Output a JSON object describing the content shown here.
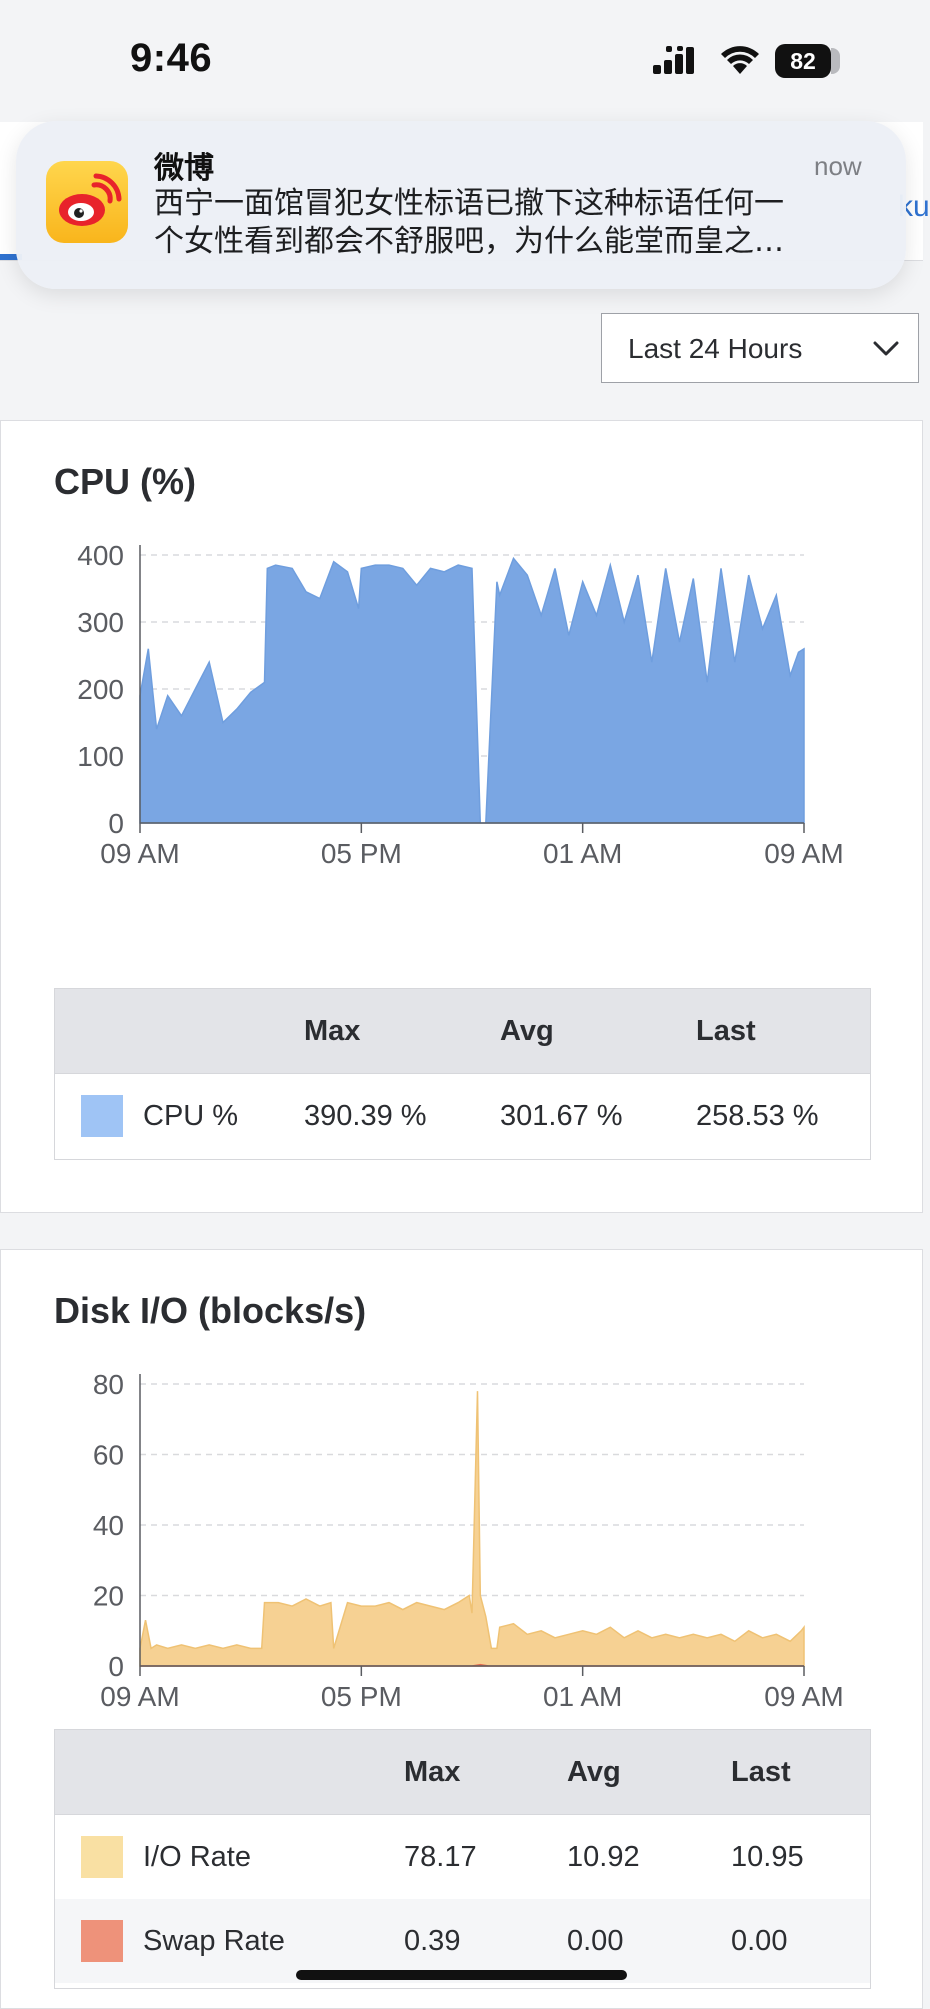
{
  "status_bar": {
    "time": "9:46",
    "battery_level": "82",
    "icons": [
      "cellular-signal-icon",
      "wifi-icon",
      "battery-icon"
    ]
  },
  "notification": {
    "app_name": "微博",
    "time": "now",
    "body_line1": "西宁一面馆冒犯女性标语已撤下这种标语任何一",
    "body_line2": "个女性看到都会不舒服吧，为什么能堂而皇之…",
    "icon": "weibo-app-icon"
  },
  "header": {
    "tab_peek": "ku"
  },
  "time_range": {
    "selected": "Last 24 Hours",
    "icon": "chevron-down-icon"
  },
  "colors": {
    "cpu": "#7aa6e3",
    "cpu_swatch": "#9fc4f5",
    "io": "#f6d193",
    "io_swatch": "#f9e0a3",
    "swap": "#e56b4f",
    "swap_swatch": "#ee927a",
    "accent": "#2f72d0"
  },
  "cpu_panel": {
    "title": "CPU (%)",
    "table": {
      "headers": [
        "",
        "Max",
        "Avg",
        "Last"
      ],
      "rows": [
        {
          "label": "CPU %",
          "max": "390.39 %",
          "avg": "301.67 %",
          "last": "258.53 %"
        }
      ]
    }
  },
  "disk_panel": {
    "title": "Disk I/O (blocks/s)",
    "table": {
      "headers": [
        "",
        "Max",
        "Avg",
        "Last"
      ],
      "rows": [
        {
          "label": "I/O Rate",
          "max": "78.17",
          "avg": "10.92",
          "last": "10.95"
        },
        {
          "label": "Swap Rate",
          "max": "0.39",
          "avg": "0.00",
          "last": "0.00"
        }
      ]
    }
  },
  "chart_data": [
    {
      "type": "area",
      "title": "CPU (%)",
      "ylim": [
        0,
        400
      ],
      "yticks": [
        "0",
        "100",
        "200",
        "300",
        "400"
      ],
      "xtick_labels": [
        "09 AM",
        "05 PM",
        "01 AM",
        "09 AM"
      ],
      "grid": true,
      "series": [
        {
          "name": "CPU %",
          "x": [
            0,
            0.3,
            0.6,
            1.0,
            1.5,
            2.0,
            2.5,
            3.0,
            3.5,
            4.0,
            4.5,
            4.6,
            4.9,
            5.5,
            6.0,
            6.5,
            7.0,
            7.5,
            7.9,
            8.0,
            8.5,
            9.0,
            9.5,
            10.0,
            10.5,
            11.0,
            11.5,
            12.0,
            12.3,
            12.5,
            12.9,
            13.0,
            13.5,
            14.0,
            14.5,
            15.0,
            15.5,
            16.0,
            16.5,
            17.0,
            17.5,
            18.0,
            18.5,
            19.0,
            19.5,
            20.0,
            20.5,
            21.0,
            21.5,
            22.0,
            22.5,
            23.0,
            23.5,
            23.8,
            24.0
          ],
          "values": [
            190,
            260,
            140,
            190,
            160,
            200,
            240,
            150,
            170,
            195,
            210,
            380,
            385,
            380,
            345,
            335,
            390,
            375,
            320,
            380,
            385,
            385,
            380,
            355,
            380,
            375,
            385,
            380,
            0,
            0,
            360,
            340,
            395,
            370,
            310,
            380,
            280,
            360,
            310,
            385,
            300,
            370,
            240,
            380,
            270,
            365,
            210,
            380,
            240,
            370,
            290,
            340,
            220,
            255,
            260
          ]
        }
      ]
    },
    {
      "type": "area",
      "title": "Disk I/O (blocks/s)",
      "ylim": [
        0,
        80
      ],
      "yticks": [
        "0",
        "20",
        "40",
        "60",
        "80"
      ],
      "xtick_labels": [
        "09 AM",
        "05 PM",
        "01 AM",
        "09 AM"
      ],
      "grid": true,
      "series": [
        {
          "name": "I/O Rate",
          "x": [
            0,
            0.2,
            0.4,
            0.6,
            1.0,
            1.5,
            2.0,
            2.5,
            3.0,
            3.5,
            4.0,
            4.4,
            4.5,
            5.0,
            5.5,
            6.0,
            6.5,
            6.9,
            7.0,
            7.5,
            8.0,
            8.5,
            9.0,
            9.5,
            10.0,
            10.5,
            11.0,
            11.5,
            11.9,
            12.0,
            12.2,
            12.3,
            12.5,
            12.7,
            12.9,
            13.0,
            13.5,
            14.0,
            14.5,
            15.0,
            15.5,
            16.0,
            16.5,
            17.0,
            17.5,
            18.0,
            18.5,
            19.0,
            19.5,
            20.0,
            20.5,
            21.0,
            21.5,
            22.0,
            22.5,
            23.0,
            23.5,
            23.9,
            24.0
          ],
          "values": [
            5,
            13,
            5,
            6,
            5,
            6,
            5,
            6,
            5,
            6,
            5,
            5,
            18,
            18,
            17,
            19,
            17,
            18,
            5,
            18,
            17,
            17,
            18,
            16,
            18,
            17,
            16,
            18,
            20,
            15,
            78,
            20,
            14,
            5,
            5,
            11,
            12,
            9,
            10,
            8,
            9,
            10,
            9,
            11,
            8,
            10,
            8,
            9,
            8,
            9,
            8,
            9,
            7,
            10,
            8,
            9,
            7,
            10,
            11
          ]
        },
        {
          "name": "Swap Rate",
          "x": [
            0,
            12.0,
            12.3,
            12.6,
            24.0
          ],
          "values": [
            0,
            0,
            0.39,
            0,
            0
          ]
        }
      ]
    }
  ]
}
